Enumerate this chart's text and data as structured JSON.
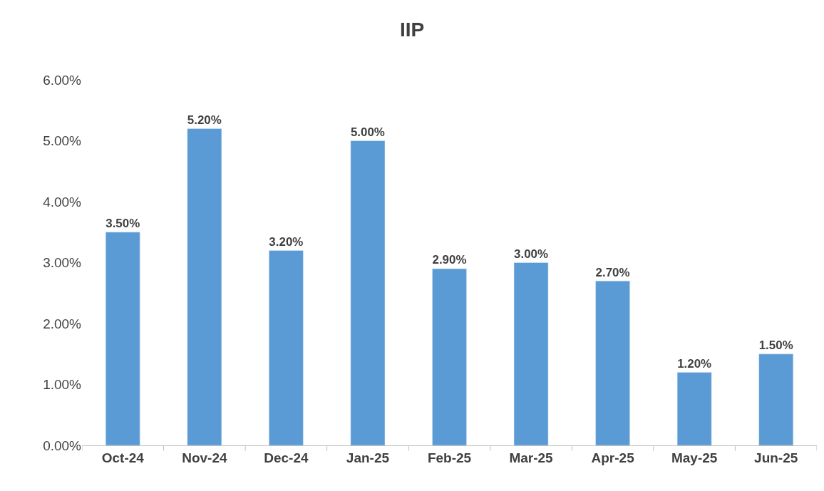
{
  "chart_data": {
    "type": "bar",
    "title": "IIP",
    "categories": [
      "Oct-24",
      "Nov-24",
      "Dec-24",
      "Jan-25",
      "Feb-25",
      "Mar-25",
      "Apr-25",
      "May-25",
      "Jun-25"
    ],
    "values": [
      3.5,
      5.2,
      3.2,
      5.0,
      2.9,
      3.0,
      2.7,
      1.2,
      1.5
    ],
    "value_labels": [
      "3.50%",
      "5.20%",
      "3.20%",
      "5.00%",
      "2.90%",
      "3.00%",
      "2.70%",
      "1.20%",
      "1.50%"
    ],
    "color": "#5b9bd5",
    "ylim": [
      0,
      6
    ],
    "yticks": [
      {
        "value": 0,
        "label": "0.00%"
      },
      {
        "value": 1,
        "label": "1.00%"
      },
      {
        "value": 2,
        "label": "2.00%"
      },
      {
        "value": 3,
        "label": "3.00%"
      },
      {
        "value": 4,
        "label": "4.00%"
      },
      {
        "value": 5,
        "label": "5.00%"
      },
      {
        "value": 6,
        "label": "6.00%"
      }
    ],
    "legend": false
  }
}
